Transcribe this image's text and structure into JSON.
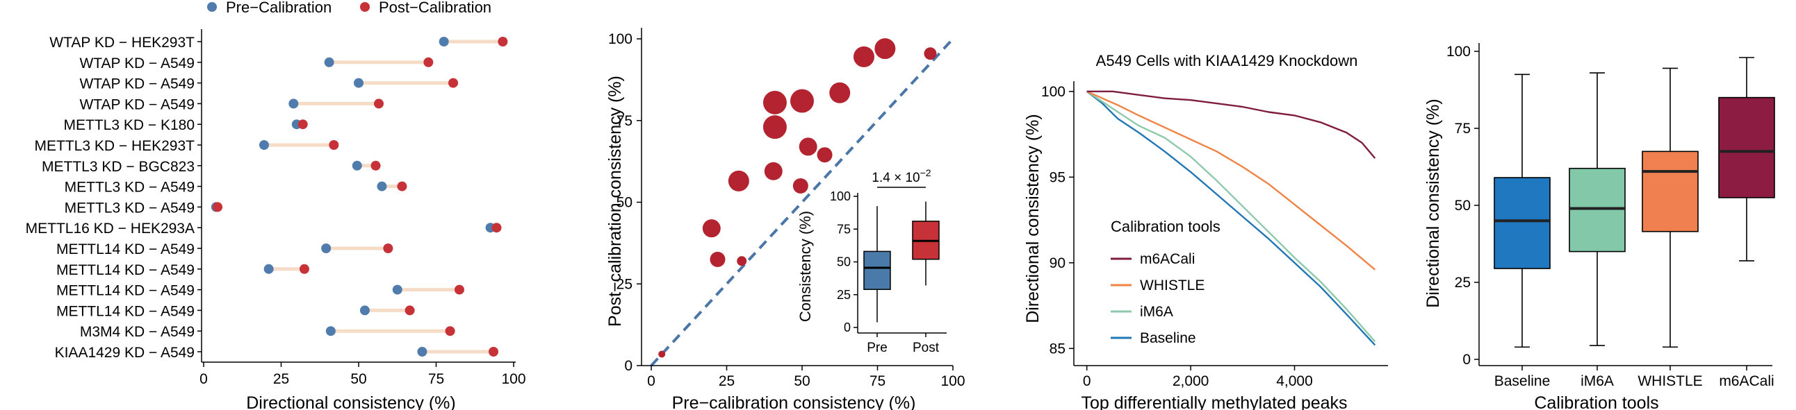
{
  "chart_data": [
    {
      "type": "dumbbell",
      "legend": {
        "placement": "top"
      },
      "series": [
        {
          "name": "Pre−Calibration",
          "color": "#4f7cac"
        },
        {
          "name": "Post−Calibration",
          "color": "#c73239"
        }
      ],
      "connector_color": "#f6dcc6",
      "categories": [
        "WTAP KD − HEK293T",
        "WTAP KD − A549",
        "WTAP KD − A549",
        "WTAP KD − A549",
        "METTL3 KD − K180",
        "METTL3 KD − HEK293T",
        "METTL3 KD − BGC823",
        "METTL3 KD − A549",
        "METTL3 KD − A549",
        "METTL16 KD − HEK293A",
        "METTL14 KD − A549",
        "METTL14 KD − A549",
        "METTL14 KD − A549",
        "METTL14 KD − A549",
        "M3M4 KD − A549",
        "KIAA1429 KD − A549"
      ],
      "pre": [
        77.5,
        40.5,
        50,
        29,
        30,
        19.5,
        49.5,
        57.5,
        4,
        92.5,
        39.5,
        21,
        62.5,
        52,
        41,
        70.5
      ],
      "post": [
        96.5,
        72.5,
        80.5,
        56.5,
        32,
        42,
        55.5,
        64,
        4.5,
        94.5,
        59.5,
        32.5,
        82.5,
        66.5,
        79.5,
        93.5
      ],
      "xlabel": "Directional consistency (%)",
      "xlim": [
        0,
        100
      ],
      "xticks": [
        "0",
        "25",
        "50",
        "75",
        "100"
      ],
      "grid": false
    },
    {
      "type": "scatter",
      "point_color": "#b32430",
      "points": [
        {
          "x": 3.5,
          "y": 3.5,
          "size": 1
        },
        {
          "x": 20,
          "y": 42,
          "size": 5
        },
        {
          "x": 22,
          "y": 32.5,
          "size": 4
        },
        {
          "x": 29,
          "y": 56.5,
          "size": 6
        },
        {
          "x": 30,
          "y": 32,
          "size": 2
        },
        {
          "x": 40.5,
          "y": 59.5,
          "size": 5
        },
        {
          "x": 41,
          "y": 73,
          "size": 7
        },
        {
          "x": 41,
          "y": 80.5,
          "size": 7
        },
        {
          "x": 49.5,
          "y": 55,
          "size": 4
        },
        {
          "x": 50,
          "y": 81,
          "size": 7
        },
        {
          "x": 52,
          "y": 67,
          "size": 5
        },
        {
          "x": 57.5,
          "y": 64.5,
          "size": 4
        },
        {
          "x": 62.5,
          "y": 83.5,
          "size": 6
        },
        {
          "x": 70.5,
          "y": 94.5,
          "size": 6
        },
        {
          "x": 77.5,
          "y": 97,
          "size": 6
        },
        {
          "x": 92.5,
          "y": 95.5,
          "size": 3
        }
      ],
      "reference_line": "y = x",
      "reference_color": "#4a76a8",
      "xlabel": "Pre−calibration consistency (%)",
      "ylabel": "Post−calibration consistency (%)",
      "xlim": [
        0,
        100
      ],
      "ylim": [
        0,
        100
      ],
      "xticks": [
        "0",
        "25",
        "50",
        "75",
        "100"
      ],
      "yticks": [
        "0",
        "25",
        "50",
        "75",
        "100"
      ],
      "inset": {
        "type": "box",
        "categories": [
          "Pre",
          "Post"
        ],
        "colors": [
          "#4a7aaa",
          "#c73239"
        ],
        "boxes": [
          {
            "min": 4,
            "q1": 29,
            "median": 45.5,
            "q3": 58,
            "max": 92.5
          },
          {
            "min": 32,
            "q1": 52,
            "median": 66,
            "q3": 81,
            "max": 96
          }
        ],
        "ylabel": "Consistency (%)",
        "yticks": [
          "0",
          "25",
          "50",
          "75",
          "100"
        ],
        "ylim": [
          0,
          100
        ],
        "annotation": {
          "base": "1.4 × 10",
          "exponent": "−2"
        }
      }
    },
    {
      "type": "line",
      "title": "A549 Cells with KIAA1429 Knockdown",
      "xlabel": "Top differentially methylated peaks",
      "ylabel": "Directional consistency (%)",
      "xlim": [
        -250,
        5800
      ],
      "ylim": [
        84,
        100.6
      ],
      "xticks": [
        "0",
        "2,000",
        "4,000"
      ],
      "yticks": [
        "85",
        "90",
        "95",
        "100"
      ],
      "legend": {
        "title": "Calibration tools",
        "placement": "bottom-left"
      },
      "series": [
        {
          "name": "m6ACali",
          "color": "#7e1d3c",
          "x": [
            0,
            500,
            1000,
            1500,
            2000,
            2500,
            3000,
            3500,
            4000,
            4500,
            5000,
            5300,
            5550
          ],
          "y": [
            100,
            100,
            99.8,
            99.6,
            99.5,
            99.3,
            99.1,
            98.8,
            98.6,
            98.2,
            97.6,
            97,
            96.1
          ]
        },
        {
          "name": "WHISTLE",
          "color": "#f08346",
          "x": [
            0,
            300,
            600,
            1000,
            1500,
            2000,
            2500,
            3000,
            3500,
            4000,
            4500,
            5000,
            5550
          ],
          "y": [
            100,
            99.6,
            99.2,
            98.6,
            97.9,
            97.2,
            96.5,
            95.6,
            94.6,
            93.4,
            92.2,
            91,
            89.6
          ]
        },
        {
          "name": "iM6A",
          "color": "#8ec9ab",
          "x": [
            0,
            300,
            600,
            1000,
            1500,
            2000,
            2500,
            3000,
            3500,
            4000,
            4500,
            5000,
            5550
          ],
          "y": [
            100,
            99.4,
            98.8,
            98,
            97.3,
            96.2,
            94.8,
            93.3,
            91.8,
            90.3,
            88.9,
            87.3,
            85.4
          ]
        },
        {
          "name": "Baseline",
          "color": "#2077b4",
          "x": [
            0,
            300,
            600,
            1000,
            1500,
            2000,
            2500,
            3000,
            3500,
            4000,
            4500,
            5000,
            5550
          ],
          "y": [
            100,
            99.3,
            98.4,
            97.6,
            96.5,
            95.3,
            94,
            92.7,
            91.4,
            90,
            88.6,
            87,
            85.2
          ]
        }
      ]
    },
    {
      "type": "box",
      "xlabel": "Calibration tools",
      "ylabel": "Directional consistency (%)",
      "ylim": [
        0,
        100
      ],
      "yticks": [
        "0",
        "25",
        "50",
        "75",
        "100"
      ],
      "categories": [
        "Baseline",
        "iM6A",
        "WHISTLE",
        "m6ACali"
      ],
      "colors": [
        "#1f78c0",
        "#82c8a9",
        "#f08050",
        "#8c1c41"
      ],
      "boxes": [
        {
          "min": 4,
          "q1": 29.5,
          "median": 45,
          "q3": 59,
          "max": 92.5
        },
        {
          "min": 4.5,
          "q1": 35,
          "median": 49,
          "q3": 62,
          "max": 93
        },
        {
          "min": 4,
          "q1": 41.5,
          "median": 61,
          "q3": 67.5,
          "max": 94.5
        },
        {
          "min": 32,
          "q1": 52.5,
          "median": 67.5,
          "q3": 85,
          "max": 98
        }
      ]
    }
  ]
}
